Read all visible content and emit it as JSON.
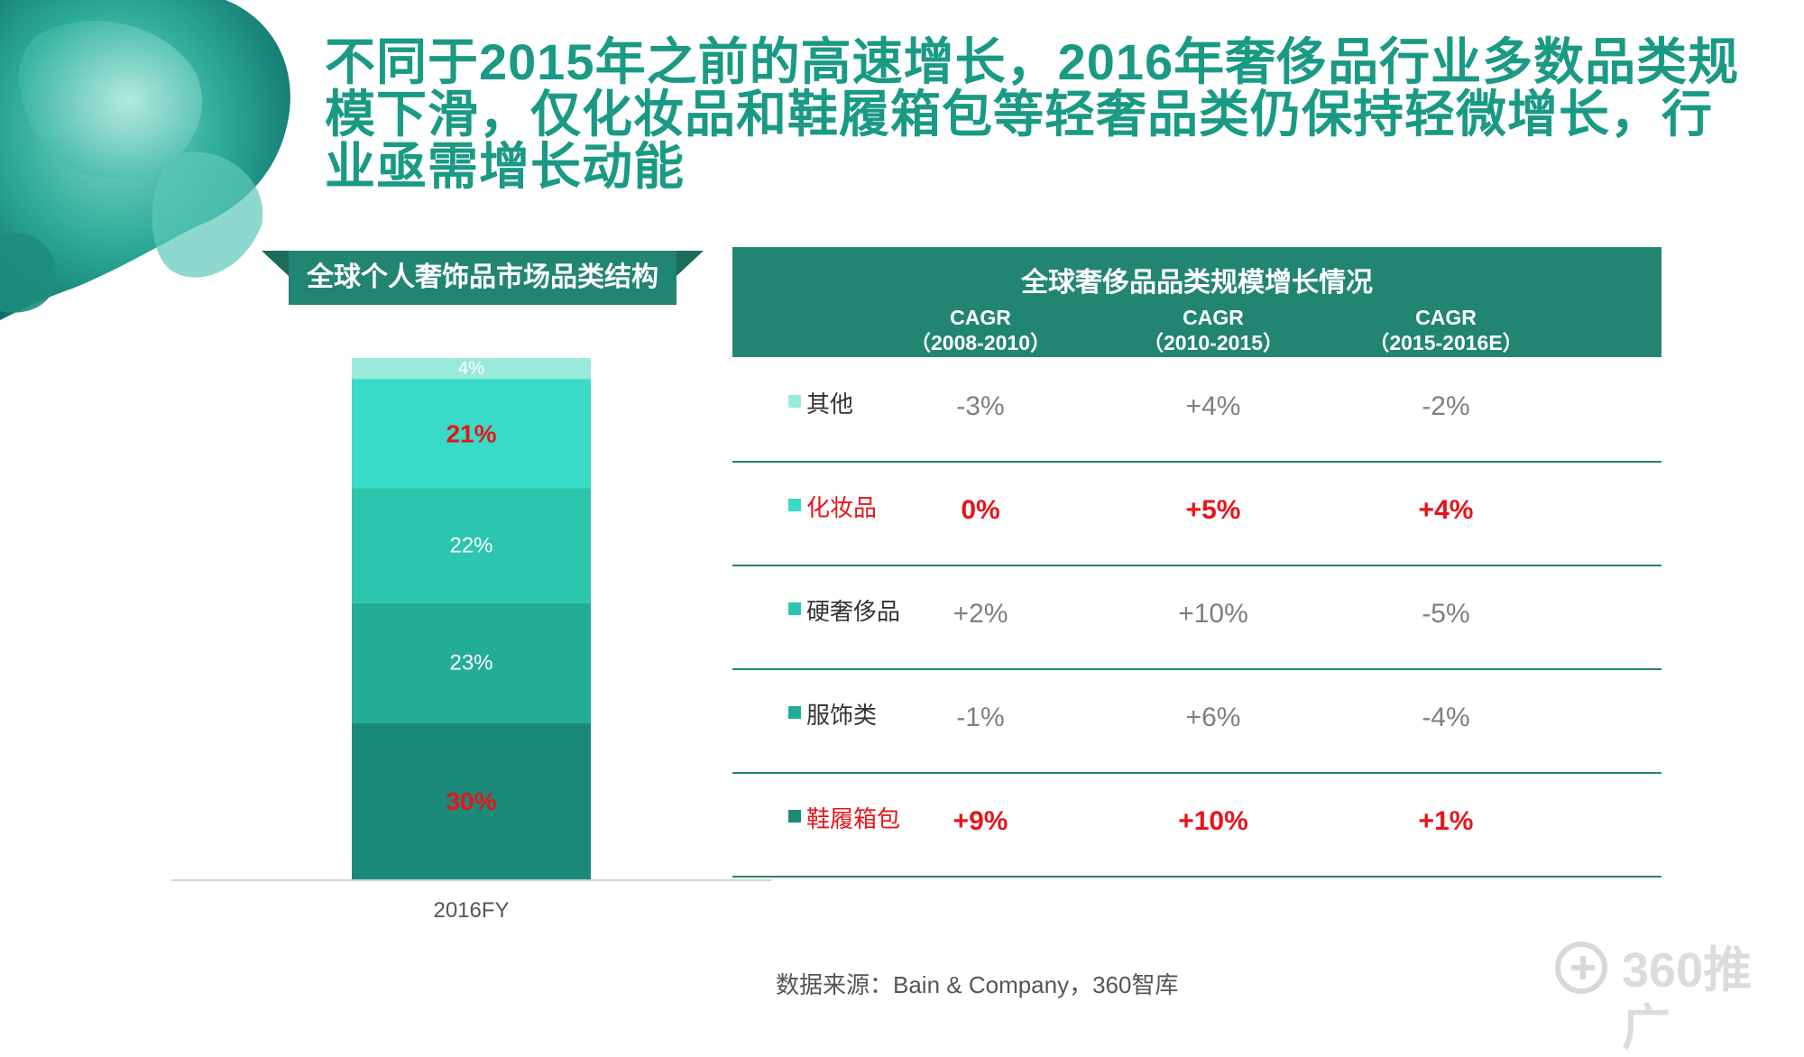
{
  "title": "不同于2015年之前的高速增长，2016年奢侈品行业多数品类规模下滑，仅化妆品和鞋履箱包等轻奢品类仍保持轻微增长，行业亟需增长动能",
  "left_banner": "全球个人奢饰品市场品类结构",
  "colors": {
    "accent": "#218572",
    "highlight": "#e8141b",
    "muted_text": "#7f7f7f"
  },
  "chart_data": {
    "type": "bar",
    "stacked": true,
    "categories": [
      "2016FY"
    ],
    "series": [
      {
        "name": "鞋履箱包",
        "values": [
          30
        ],
        "label": "30%",
        "color": "#1b8a78",
        "label_color": "#e8141b",
        "highlight": true
      },
      {
        "name": "服饰类",
        "values": [
          23
        ],
        "label": "23%",
        "color": "#23ad97",
        "label_color": "#ffffff",
        "highlight": false
      },
      {
        "name": "硬奢侈品",
        "values": [
          22
        ],
        "label": "22%",
        "color": "#2cc6ae",
        "label_color": "#ffffff",
        "highlight": false
      },
      {
        "name": "化妆品",
        "values": [
          21
        ],
        "label": "21%",
        "color": "#39dbc6",
        "label_color": "#e8141b",
        "highlight": true
      },
      {
        "name": "其他",
        "values": [
          4
        ],
        "label": "4%",
        "color": "#9aeadc",
        "label_color": "#ffffff",
        "highlight": false
      }
    ],
    "ylim": [
      0,
      100
    ],
    "grid": false,
    "legend": "none"
  },
  "table": {
    "title": "全球奢侈品品类规模增长情况",
    "columns": [
      {
        "line1": "CAGR",
        "line2": "（2008-2010）"
      },
      {
        "line1": "CAGR",
        "line2": "（2010-2015）"
      },
      {
        "line1": "CAGR",
        "line2": "（2015-2016E）"
      }
    ],
    "rows": [
      {
        "name": "其他",
        "color": "#9aeadc",
        "highlight": false,
        "values": [
          "-3%",
          "+4%",
          "-2%"
        ]
      },
      {
        "name": "化妆品",
        "color": "#39dbc6",
        "highlight": true,
        "values": [
          "0%",
          "+5%",
          "+4%"
        ]
      },
      {
        "name": "硬奢侈品",
        "color": "#2cc6ae",
        "highlight": false,
        "values": [
          "+2%",
          "+10%",
          "-5%"
        ]
      },
      {
        "name": "服饰类",
        "color": "#23ad97",
        "highlight": false,
        "values": [
          "-1%",
          "+6%",
          "-4%"
        ]
      },
      {
        "name": "鞋履箱包",
        "color": "#1b8a78",
        "highlight": true,
        "values": [
          "+9%",
          "+10%",
          "+1%"
        ]
      }
    ]
  },
  "source": "数据来源：Bain & Company，360智库",
  "logo_text": "360推广"
}
